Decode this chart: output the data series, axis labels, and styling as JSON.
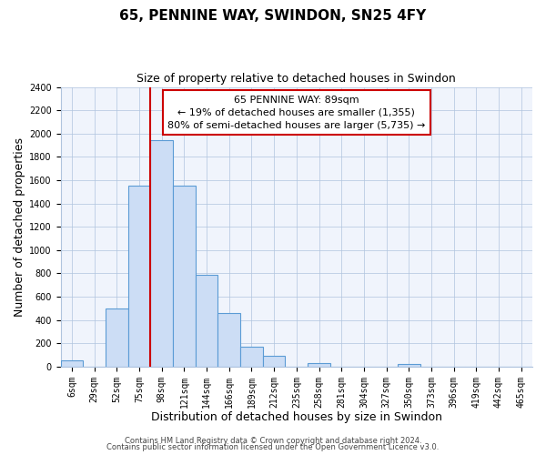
{
  "title": "65, PENNINE WAY, SWINDON, SN25 4FY",
  "subtitle": "Size of property relative to detached houses in Swindon",
  "xlabel": "Distribution of detached houses by size in Swindon",
  "ylabel": "Number of detached properties",
  "bar_labels": [
    "6sqm",
    "29sqm",
    "52sqm",
    "75sqm",
    "98sqm",
    "121sqm",
    "144sqm",
    "166sqm",
    "189sqm",
    "212sqm",
    "235sqm",
    "258sqm",
    "281sqm",
    "304sqm",
    "327sqm",
    "350sqm",
    "373sqm",
    "396sqm",
    "419sqm",
    "442sqm",
    "465sqm"
  ],
  "bar_values": [
    50,
    0,
    500,
    1550,
    1940,
    1550,
    790,
    460,
    170,
    90,
    0,
    30,
    0,
    0,
    0,
    20,
    0,
    0,
    0,
    0,
    0
  ],
  "bar_color": "#ccddf5",
  "bar_edge_color": "#5b9bd5",
  "property_line_color": "#cc0000",
  "property_line_index": 4,
  "ylim_max": 2400,
  "yticks": [
    0,
    200,
    400,
    600,
    800,
    1000,
    1200,
    1400,
    1600,
    1800,
    2000,
    2200,
    2400
  ],
  "annotation_title": "65 PENNINE WAY: 89sqm",
  "annotation_line1": "← 19% of detached houses are smaller (1,355)",
  "annotation_line2": "80% of semi-detached houses are larger (5,735) →",
  "annotation_box_facecolor": "#ffffff",
  "annotation_box_edgecolor": "#cc0000",
  "footer1": "Contains HM Land Registry data © Crown copyright and database right 2024.",
  "footer2": "Contains public sector information licensed under the Open Government Licence v3.0.",
  "title_fontsize": 11,
  "subtitle_fontsize": 9,
  "axis_label_fontsize": 9,
  "tick_fontsize": 7,
  "annotation_fontsize": 8,
  "footer_fontsize": 6
}
